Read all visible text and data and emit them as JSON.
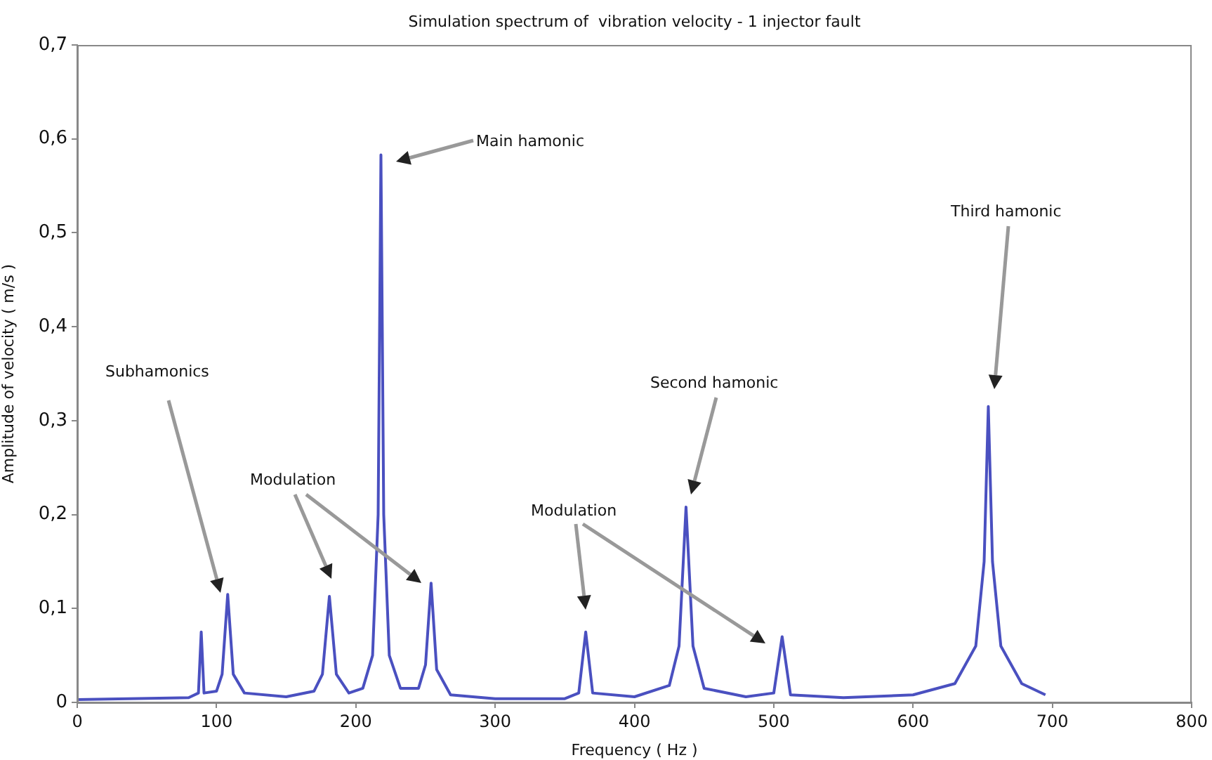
{
  "chart_data": {
    "type": "line",
    "title": "Simulation spectrum of  vibration velocity - 1 injector fault",
    "xlabel": "Frequency ( Hz )",
    "ylabel": "Amplitude of velocity ( m/s )",
    "x": [
      0,
      80,
      87,
      89,
      91,
      100,
      104,
      108,
      112,
      120,
      150,
      170,
      176,
      181,
      186,
      195,
      205,
      212,
      216,
      218,
      220,
      224,
      232,
      245,
      250,
      254,
      258,
      268,
      300,
      350,
      360,
      365,
      370,
      400,
      425,
      432,
      437,
      442,
      450,
      480,
      500,
      506,
      512,
      550,
      600,
      630,
      645,
      651,
      654,
      657,
      663,
      678,
      695
    ],
    "series": [
      {
        "color": "#4a50c0",
        "values": [
          0.003,
          0.005,
          0.01,
          0.075,
          0.01,
          0.012,
          0.03,
          0.115,
          0.03,
          0.01,
          0.006,
          0.012,
          0.03,
          0.113,
          0.03,
          0.01,
          0.015,
          0.05,
          0.2,
          0.583,
          0.2,
          0.05,
          0.015,
          0.015,
          0.04,
          0.127,
          0.035,
          0.008,
          0.004,
          0.004,
          0.01,
          0.075,
          0.01,
          0.006,
          0.018,
          0.06,
          0.208,
          0.06,
          0.015,
          0.006,
          0.01,
          0.07,
          0.008,
          0.005,
          0.008,
          0.02,
          0.06,
          0.15,
          0.315,
          0.15,
          0.06,
          0.02,
          0.008
        ]
      }
    ],
    "xlim": [
      0,
      800
    ],
    "xticks": [
      0,
      100,
      200,
      300,
      400,
      500,
      600,
      700,
      800
    ],
    "ylim": [
      0,
      0.7
    ],
    "yticks": [
      {
        "value": 0,
        "label": "0"
      },
      {
        "value": 0.1,
        "label": "0,1"
      },
      {
        "value": 0.2,
        "label": "0,2"
      },
      {
        "value": 0.3,
        "label": "0,3"
      },
      {
        "value": 0.4,
        "label": "0,4"
      },
      {
        "value": 0.5,
        "label": "0,5"
      },
      {
        "value": 0.6,
        "label": "0,6"
      },
      {
        "value": 0.7,
        "label": "0,7"
      }
    ],
    "grid": false,
    "legend": false,
    "marker": "none",
    "line_style": "solid",
    "annotations": [
      "Main hamonic",
      "Subhamonics",
      "Modulation",
      "Modulation",
      "Second hamonic",
      "Third hamonic"
    ]
  }
}
